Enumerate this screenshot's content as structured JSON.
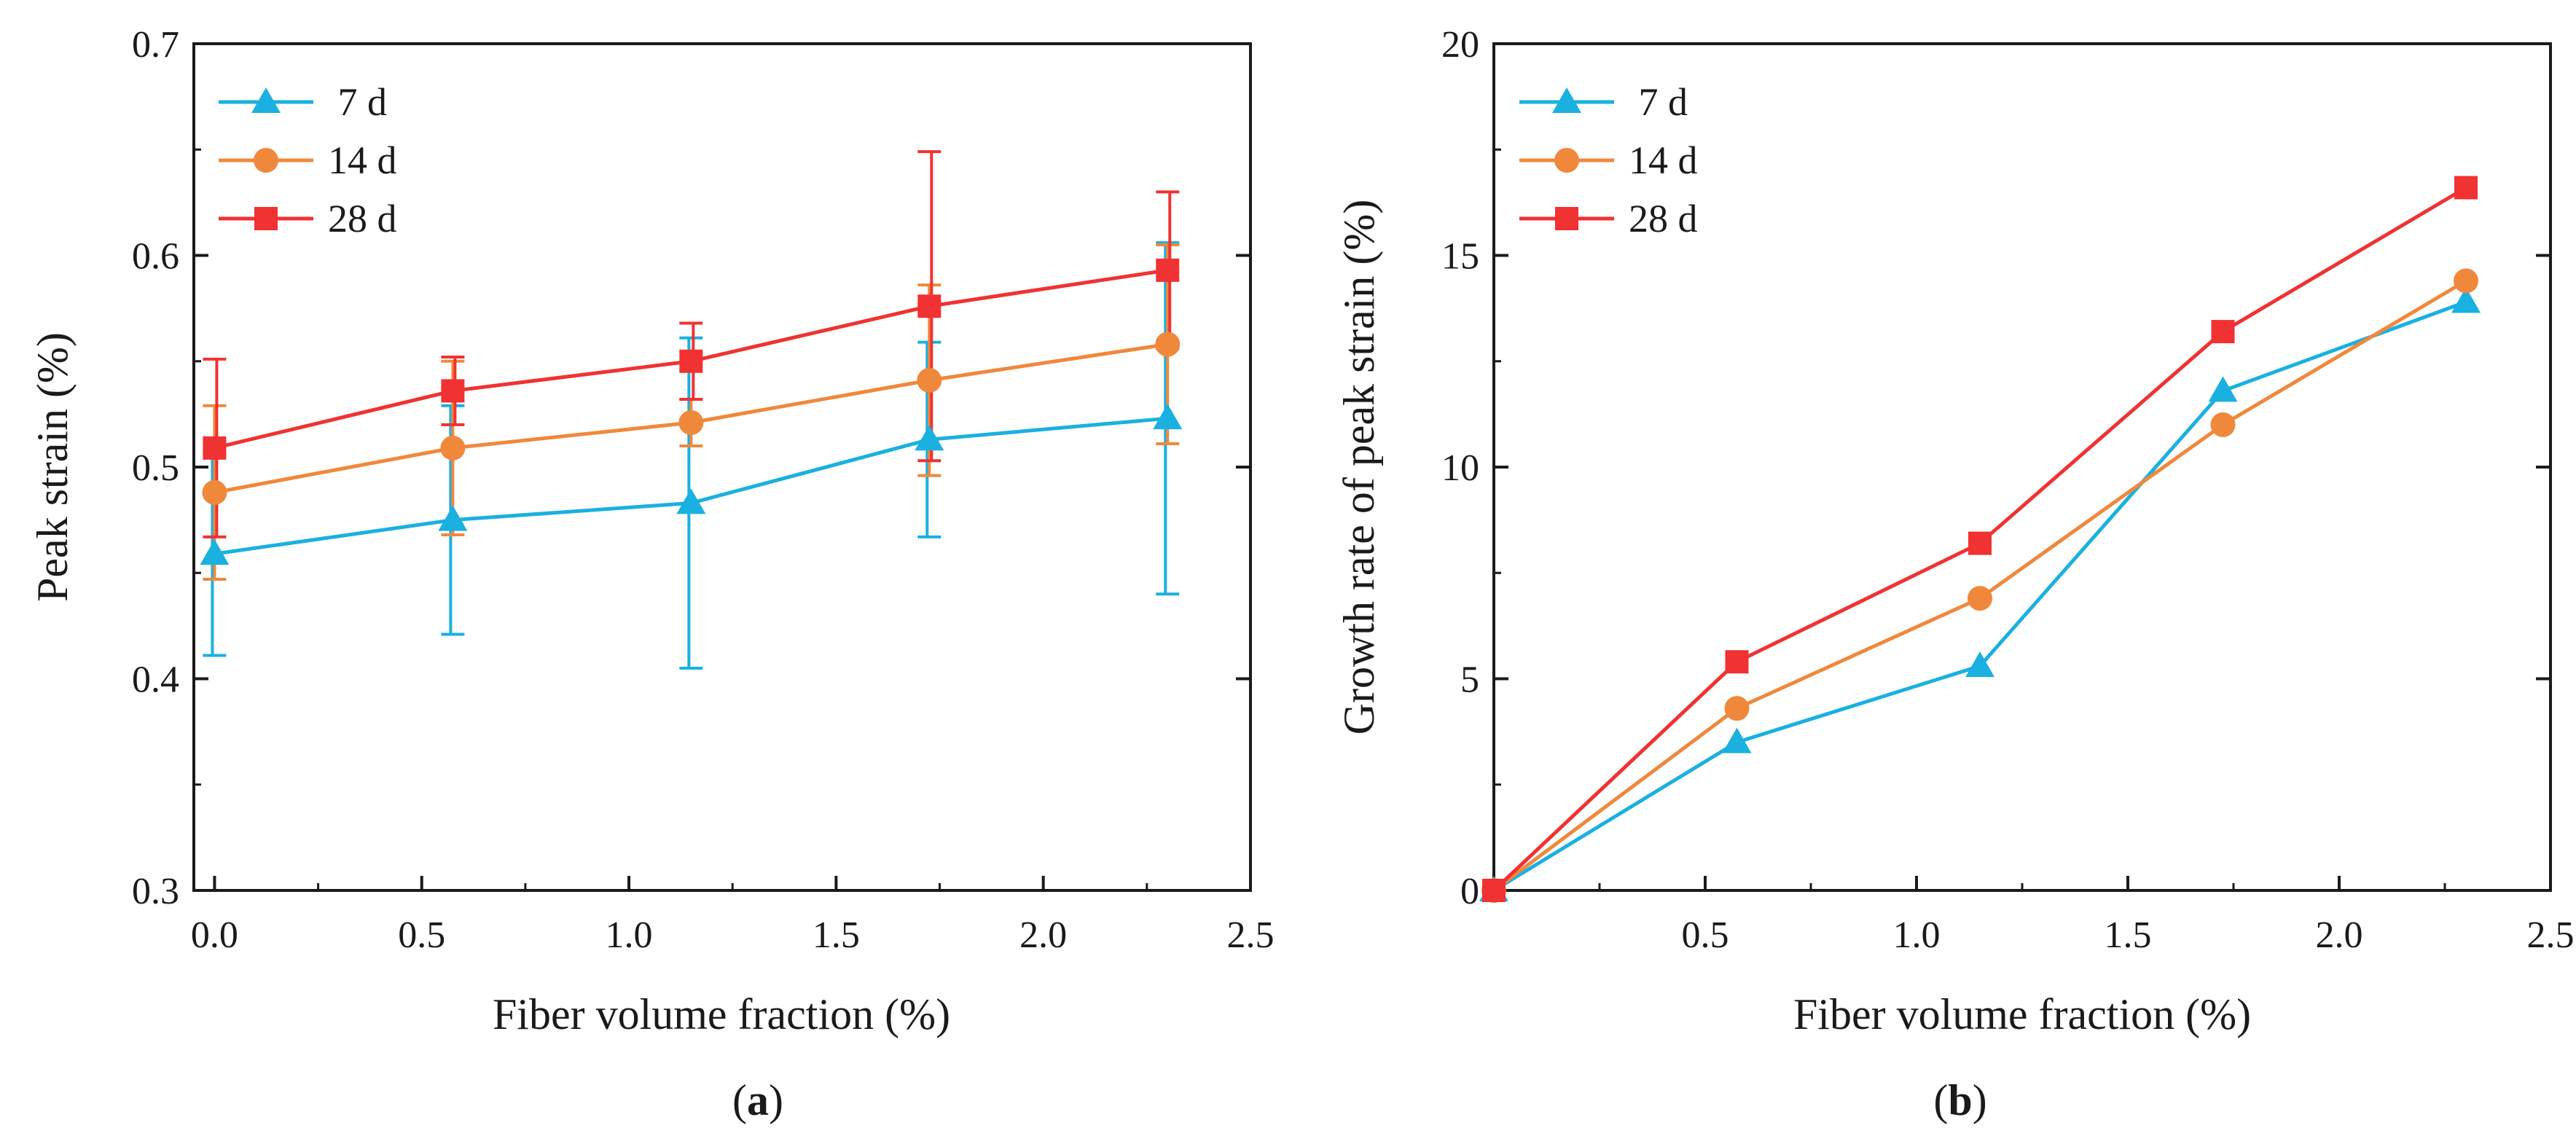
{
  "chart_data": [
    {
      "type": "line",
      "panel_label": "(a)",
      "panel_letter": "a",
      "title": "",
      "xlabel": "Fiber volume fraction (%)",
      "ylabel": "Peak strain (%)",
      "xlim": [
        -0.05,
        2.5
      ],
      "ylim": [
        0.3,
        0.7
      ],
      "xticks": [
        0.0,
        0.5,
        1.0,
        1.5,
        2.0,
        2.5
      ],
      "xtick_labels": [
        "0.0",
        "0.5",
        "1.0",
        "1.5",
        "2.0",
        "2.5"
      ],
      "yticks": [
        0.3,
        0.4,
        0.5,
        0.6,
        0.7
      ],
      "ytick_labels": [
        "0.3",
        "0.4",
        "0.5",
        "0.6",
        "0.7"
      ],
      "legend_position": "top-left",
      "x": [
        0.0,
        0.575,
        1.15,
        1.725,
        2.3
      ],
      "series": [
        {
          "name": "7 d",
          "color": "#1ab0e0",
          "marker": "triangle",
          "values": [
            0.459,
            0.475,
            0.483,
            0.513,
            0.523
          ],
          "error_low": [
            0.411,
            0.421,
            0.405,
            0.467,
            0.44
          ],
          "error_high": [
            0.507,
            0.529,
            0.561,
            0.559,
            0.606
          ]
        },
        {
          "name": "14 d",
          "color": "#f0883c",
          "marker": "circle",
          "values": [
            0.488,
            0.509,
            0.521,
            0.541,
            0.558
          ],
          "error_low": [
            0.447,
            0.468,
            0.51,
            0.496,
            0.511
          ],
          "error_high": [
            0.529,
            0.55,
            0.532,
            0.586,
            0.605
          ]
        },
        {
          "name": "28 d",
          "color": "#f03232",
          "marker": "square",
          "values": [
            0.509,
            0.536,
            0.55,
            0.576,
            0.593
          ],
          "error_low": [
            0.467,
            0.52,
            0.532,
            0.503,
            0.556
          ],
          "error_high": [
            0.551,
            0.552,
            0.568,
            0.649,
            0.63
          ]
        }
      ]
    },
    {
      "type": "line",
      "panel_label": "(b)",
      "panel_letter": "b",
      "title": "",
      "xlabel": "Fiber volume fraction (%)",
      "ylabel": "Growth rate of peak strain (%)",
      "xlim": [
        0.0,
        2.5
      ],
      "ylim": [
        0,
        20
      ],
      "xticks": [
        0.5,
        1.0,
        1.5,
        2.0,
        2.5
      ],
      "xtick_labels": [
        "0.5",
        "1.0",
        "1.5",
        "2.0",
        "2.5"
      ],
      "yticks": [
        0,
        5,
        10,
        15,
        20
      ],
      "ytick_labels": [
        "0",
        "5",
        "10",
        "15",
        "20"
      ],
      "legend_position": "top-left",
      "x": [
        0.0,
        0.575,
        1.15,
        1.725,
        2.3
      ],
      "series": [
        {
          "name": "7 d",
          "color": "#1ab0e0",
          "marker": "triangle",
          "values": [
            0,
            3.5,
            5.3,
            11.8,
            13.9
          ]
        },
        {
          "name": "14 d",
          "color": "#f0883c",
          "marker": "circle",
          "values": [
            0,
            4.3,
            6.9,
            11.0,
            14.4
          ]
        },
        {
          "name": "28 d",
          "color": "#f03232",
          "marker": "square",
          "values": [
            0,
            5.4,
            8.2,
            13.2,
            16.6
          ]
        }
      ]
    }
  ]
}
